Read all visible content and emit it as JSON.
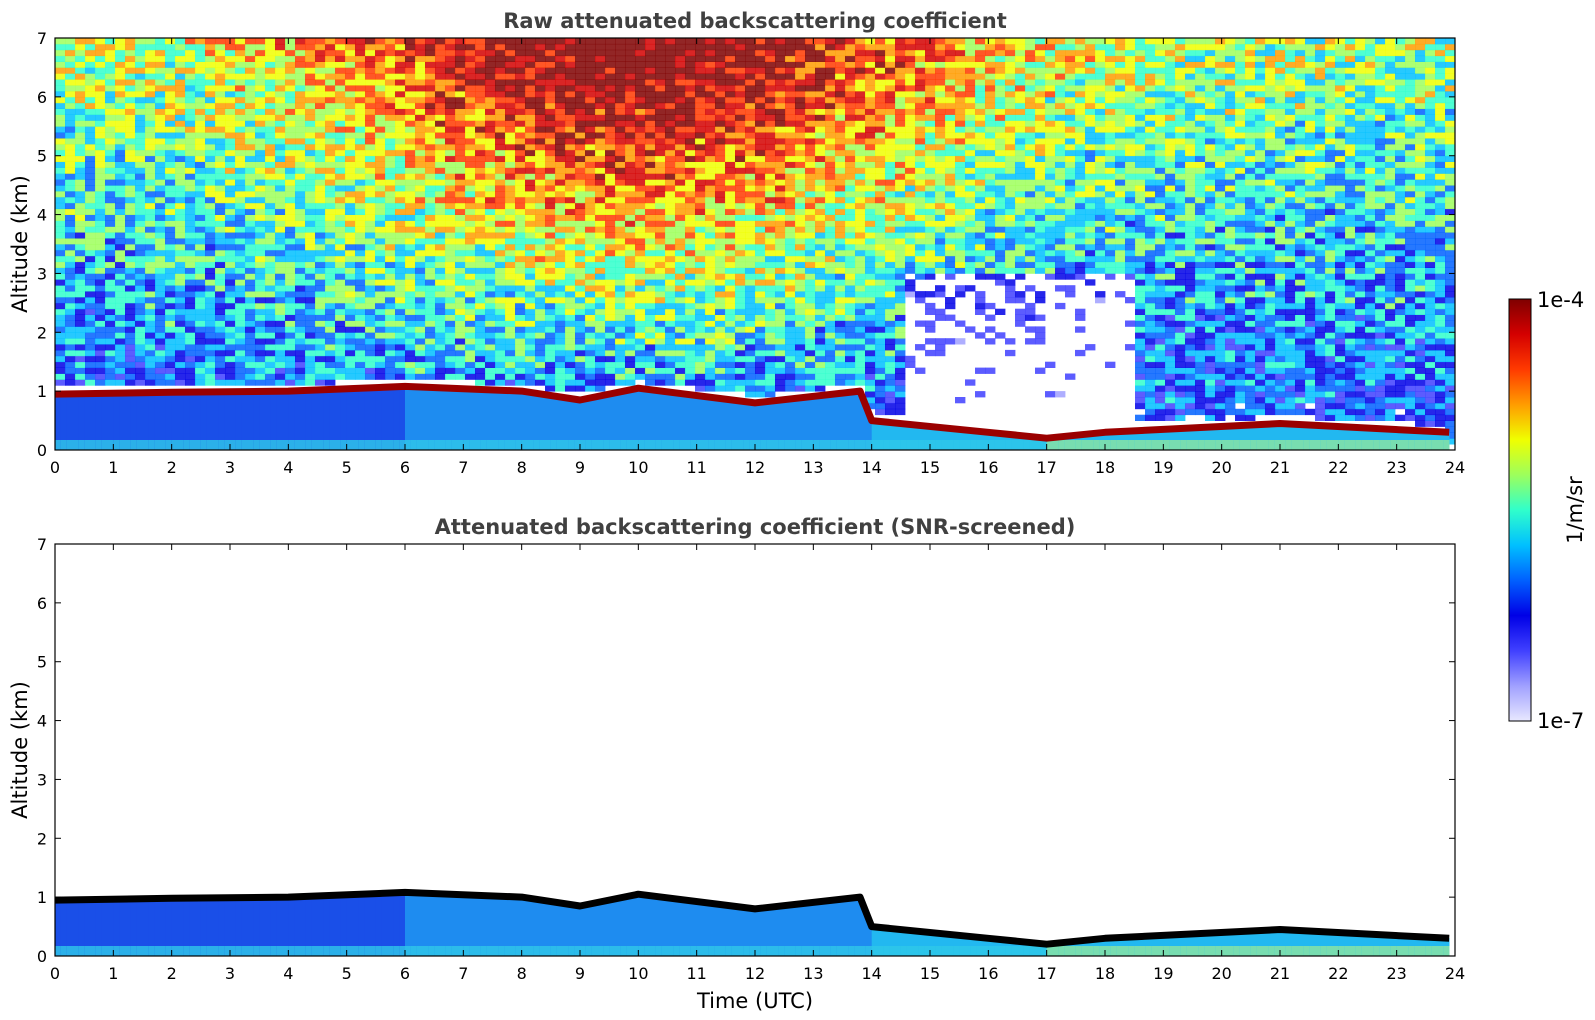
{
  "chart_data": [
    {
      "type": "heatmap",
      "title": "Raw attenuated backscattering coefficient",
      "xlabel": "",
      "ylabel": "Altitude (km)",
      "xlim": [
        0,
        24
      ],
      "ylim": [
        0,
        7
      ],
      "xticks": [
        "0",
        "1",
        "2",
        "3",
        "4",
        "5",
        "6",
        "7",
        "8",
        "9",
        "10",
        "11",
        "12",
        "13",
        "14",
        "15",
        "16",
        "17",
        "18",
        "19",
        "20",
        "21",
        "22",
        "23",
        "24"
      ],
      "yticks": [
        "0",
        "1",
        "2",
        "3",
        "4",
        "5",
        "6",
        "7"
      ],
      "cloud_layer_top_km": [
        [
          0,
          0.95
        ],
        [
          2,
          0.98
        ],
        [
          4,
          1.0
        ],
        [
          6,
          1.08
        ],
        [
          8,
          1.0
        ],
        [
          9,
          0.85
        ],
        [
          10,
          1.05
        ],
        [
          12,
          0.8
        ],
        [
          13.8,
          1.0
        ],
        [
          14,
          0.5
        ],
        [
          16,
          0.3
        ],
        [
          17,
          0.2
        ],
        [
          18,
          0.3
        ],
        [
          21,
          0.45
        ],
        [
          23.9,
          0.3
        ]
      ],
      "noise": true
    },
    {
      "type": "heatmap",
      "title": "Attenuated backscattering coefficient (SNR-screened)",
      "xlabel": "Time (UTC)",
      "ylabel": "Altitude (km)",
      "xlim": [
        0,
        24
      ],
      "ylim": [
        0,
        7
      ],
      "xticks": [
        "0",
        "1",
        "2",
        "3",
        "4",
        "5",
        "6",
        "7",
        "8",
        "9",
        "10",
        "11",
        "12",
        "13",
        "14",
        "15",
        "16",
        "17",
        "18",
        "19",
        "20",
        "21",
        "22",
        "23",
        "24"
      ],
      "yticks": [
        "0",
        "1",
        "2",
        "3",
        "4",
        "5",
        "6",
        "7"
      ],
      "cloud_layer_top_km": [
        [
          0,
          0.95
        ],
        [
          2,
          0.98
        ],
        [
          4,
          1.0
        ],
        [
          6,
          1.08
        ],
        [
          8,
          1.0
        ],
        [
          9,
          0.85
        ],
        [
          10,
          1.05
        ],
        [
          12,
          0.8
        ],
        [
          13.8,
          1.0
        ],
        [
          14,
          0.5
        ],
        [
          16,
          0.3
        ],
        [
          17,
          0.2
        ],
        [
          18,
          0.3
        ],
        [
          21,
          0.45
        ],
        [
          23.9,
          0.3
        ]
      ],
      "noise": false
    }
  ],
  "colorbar": {
    "max_label": "1e-4",
    "min_label": "1e-7",
    "unit_label": "1/m/sr",
    "colormap": [
      "#7f0000",
      "#d40000",
      "#ff3a00",
      "#ff9c00",
      "#f0ff00",
      "#9dff5c",
      "#30ffcb",
      "#00c0ff",
      "#0060ff",
      "#0000e6",
      "#4040ff",
      "#a0a0ff",
      "#e8e8ff"
    ]
  }
}
